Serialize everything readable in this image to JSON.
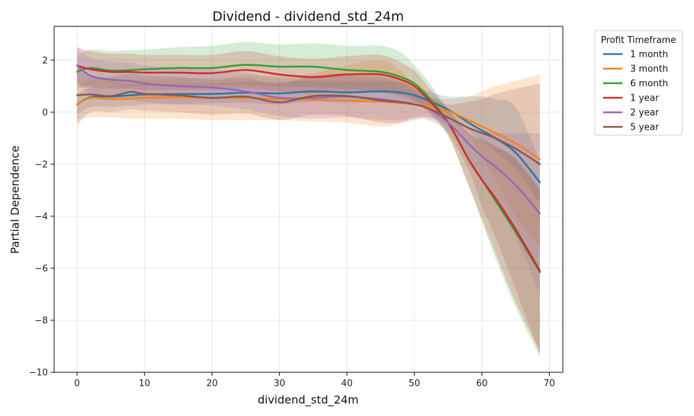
{
  "chart_data": {
    "type": "line",
    "title": "Dividend - dividend_std_24m",
    "xlabel": "dividend_std_24m",
    "ylabel": "Partial Dependence",
    "xlim": [
      -3.4,
      72
    ],
    "ylim": [
      -10,
      3.3
    ],
    "x_ticks": [
      0,
      10,
      20,
      30,
      40,
      50,
      60,
      70
    ],
    "y_ticks": [
      -10,
      -8,
      -6,
      -4,
      -2,
      0,
      2
    ],
    "y_tick_labels": [
      "−10",
      "−8",
      "−6",
      "−4",
      "−2",
      "0",
      "2"
    ],
    "grid": true,
    "legend": {
      "title": "Profit Timeframe",
      "placement": "outside-top-right"
    },
    "x": [
      0,
      2,
      5,
      8,
      10,
      15,
      20,
      25,
      30,
      35,
      40,
      45,
      48,
      50,
      52,
      55,
      58,
      60,
      62,
      65,
      68.6
    ],
    "series": [
      {
        "name": "1 month",
        "color": "#1f77b4",
        "values": [
          0.3,
          0.58,
          0.6,
          0.65,
          0.68,
          0.7,
          0.7,
          0.75,
          0.72,
          0.8,
          0.76,
          0.8,
          0.75,
          0.65,
          0.45,
          0.1,
          -0.4,
          -0.7,
          -1.0,
          -1.55,
          -2.7
        ],
        "band_low": [
          -0.1,
          0.2,
          0.2,
          0.25,
          0.3,
          0.3,
          0.35,
          0.35,
          0.3,
          0.4,
          0.35,
          0.4,
          0.35,
          0.35,
          0.25,
          -0.1,
          -0.7,
          -1.1,
          -1.5,
          -2.2,
          -3.5
        ],
        "band_high": [
          0.7,
          0.95,
          1.0,
          1.05,
          1.05,
          1.1,
          1.1,
          1.15,
          1.15,
          1.2,
          1.2,
          1.2,
          1.15,
          1.0,
          0.8,
          0.6,
          0.6,
          0.6,
          0.5,
          0.2,
          -1.9
        ]
      },
      {
        "name": "3 month",
        "color": "#ff7f0e",
        "values": [
          0.3,
          0.55,
          0.5,
          0.52,
          0.55,
          0.58,
          0.55,
          0.55,
          0.5,
          0.48,
          0.45,
          0.4,
          0.35,
          0.3,
          0.25,
          0.05,
          -0.3,
          -0.55,
          -0.8,
          -1.2,
          -1.8
        ],
        "band_low": [
          -0.3,
          -0.2,
          -0.2,
          -0.25,
          -0.25,
          -0.25,
          -0.3,
          -0.3,
          -0.3,
          -0.35,
          -0.4,
          -0.55,
          -0.4,
          -0.2,
          -0.2,
          -0.3,
          -0.9,
          -1.7,
          -2.6,
          -4.0,
          -5.2
        ],
        "band_high": [
          1.0,
          1.3,
          1.25,
          1.25,
          1.25,
          1.3,
          1.3,
          1.4,
          1.4,
          1.5,
          1.8,
          2.0,
          1.6,
          1.0,
          0.6,
          0.5,
          0.6,
          0.8,
          1.0,
          1.2,
          1.45
        ]
      },
      {
        "name": "6 month",
        "color": "#2ca02c",
        "values": [
          1.55,
          1.7,
          1.6,
          1.62,
          1.65,
          1.7,
          1.7,
          1.82,
          1.75,
          1.75,
          1.62,
          1.55,
          1.35,
          1.1,
          0.6,
          -0.4,
          -1.8,
          -2.6,
          -3.4,
          -4.6,
          -6.15
        ],
        "band_low": [
          0.9,
          1.0,
          1.0,
          1.0,
          1.0,
          1.05,
          1.05,
          1.05,
          1.0,
          0.95,
          0.9,
          0.8,
          0.7,
          0.5,
          0.1,
          -0.9,
          -2.8,
          -4.2,
          -5.6,
          -7.5,
          -9.4
        ],
        "band_high": [
          2.2,
          2.4,
          2.35,
          2.38,
          2.4,
          2.5,
          2.55,
          2.7,
          2.6,
          2.65,
          2.55,
          2.55,
          2.3,
          1.8,
          1.2,
          0.1,
          -0.8,
          -1.0,
          -1.3,
          -1.8,
          -2.9
        ]
      },
      {
        "name": "1 year",
        "color": "#d62728",
        "values": [
          1.8,
          1.65,
          1.55,
          1.55,
          1.52,
          1.52,
          1.5,
          1.62,
          1.45,
          1.35,
          1.45,
          1.45,
          1.25,
          1.0,
          0.5,
          -0.4,
          -1.8,
          -2.6,
          -3.3,
          -4.5,
          -6.1
        ],
        "band_low": [
          1.1,
          0.95,
          0.9,
          0.9,
          0.85,
          0.85,
          0.85,
          0.9,
          0.8,
          0.7,
          0.8,
          0.75,
          0.6,
          0.4,
          0.0,
          -0.9,
          -2.8,
          -4.1,
          -5.4,
          -7.3,
          -9.2
        ],
        "band_high": [
          2.5,
          2.35,
          2.25,
          2.25,
          2.2,
          2.2,
          2.2,
          2.35,
          2.15,
          2.05,
          2.15,
          2.2,
          1.9,
          1.6,
          1.0,
          0.1,
          -0.8,
          -1.1,
          -1.3,
          -1.8,
          -3.0
        ]
      },
      {
        "name": "2 year",
        "color": "#9467bd",
        "values": [
          1.8,
          1.4,
          1.25,
          1.2,
          1.1,
          1.0,
          0.95,
          0.8,
          0.55,
          0.55,
          0.6,
          0.5,
          0.4,
          0.3,
          0.15,
          -0.4,
          -1.2,
          -1.7,
          -2.1,
          -2.8,
          -3.9
        ],
        "band_low": [
          1.1,
          0.7,
          0.55,
          0.5,
          0.4,
          0.3,
          0.25,
          0.1,
          -0.15,
          -0.25,
          -0.2,
          -0.3,
          -0.3,
          -0.2,
          -0.2,
          -0.6,
          -1.8,
          -2.6,
          -3.4,
          -4.8,
          -7.0
        ],
        "band_high": [
          2.5,
          2.1,
          1.95,
          1.9,
          1.8,
          1.7,
          1.65,
          1.5,
          1.3,
          1.35,
          1.4,
          1.3,
          1.1,
          0.8,
          0.5,
          -0.2,
          -0.6,
          -0.7,
          -0.8,
          -0.8,
          -0.8
        ]
      },
      {
        "name": "5 year",
        "color": "#8c564b",
        "values": [
          0.65,
          0.68,
          0.62,
          0.78,
          0.7,
          0.65,
          0.55,
          0.6,
          0.38,
          0.62,
          0.62,
          0.45,
          0.38,
          0.3,
          0.15,
          -0.2,
          -0.6,
          -0.8,
          -1.0,
          -1.4,
          -2.0
        ],
        "band_low": [
          -0.5,
          0.0,
          0.0,
          0.1,
          0.05,
          0.0,
          -0.1,
          -0.05,
          -0.3,
          -0.1,
          -0.15,
          -0.4,
          -0.4,
          -0.3,
          -0.3,
          -0.8,
          -2.2,
          -3.6,
          -4.8,
          -6.8,
          -9.3
        ],
        "band_high": [
          1.8,
          1.4,
          1.35,
          1.5,
          1.4,
          1.35,
          1.25,
          1.3,
          1.1,
          1.4,
          1.5,
          1.4,
          1.2,
          0.9,
          0.6,
          0.3,
          0.4,
          0.5,
          0.7,
          0.9,
          1.1
        ]
      }
    ]
  }
}
